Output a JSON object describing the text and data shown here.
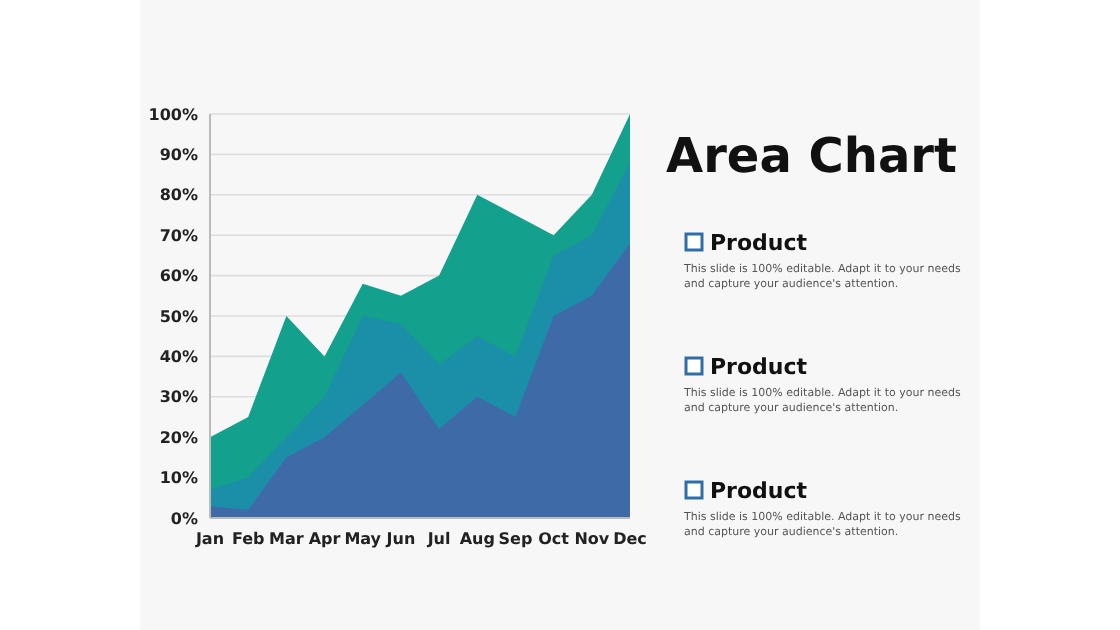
{
  "chart_data": {
    "type": "area",
    "title": "Area Chart",
    "categories": [
      "Jan",
      "Feb",
      "Mar",
      "Apr",
      "May",
      "Jun",
      "Jul",
      "Aug",
      "Sep",
      "Oct",
      "Nov",
      "Dec"
    ],
    "series": [
      {
        "color": "#13a08c",
        "values": [
          20,
          25,
          50,
          40,
          58,
          55,
          60,
          80,
          75,
          70,
          80,
          100
        ]
      },
      {
        "color": "#1b8ea8",
        "values": [
          7,
          10,
          20,
          30,
          50,
          48,
          38,
          45,
          40,
          65,
          70,
          88
        ]
      },
      {
        "color": "#3f6aa8",
        "values": [
          3,
          2,
          15,
          20,
          28,
          36,
          22,
          30,
          25,
          50,
          55,
          68
        ]
      }
    ],
    "ylim": [
      0,
      100
    ],
    "yticks": [
      {
        "value": 0,
        "label": "0%"
      },
      {
        "value": 10,
        "label": "10%"
      },
      {
        "value": 20,
        "label": "20%"
      },
      {
        "value": 30,
        "label": "30%"
      },
      {
        "value": 40,
        "label": "40%"
      },
      {
        "value": 50,
        "label": "50%"
      },
      {
        "value": 60,
        "label": "60%"
      },
      {
        "value": 70,
        "label": "70%"
      },
      {
        "value": 80,
        "label": "80%"
      },
      {
        "value": 90,
        "label": "90%"
      },
      {
        "value": 100,
        "label": "100%"
      }
    ],
    "grid": "y",
    "annotations": [
      "Product",
      "This slide is 100% editable. Adapt it to your needs and capture your audience's attention.",
      "Product",
      "This slide is 100% editable. Adapt it to your needs and capture your audience's attention.",
      "Product",
      "This slide is 100% editable. Adapt it to your needs and capture your audience's attention."
    ]
  }
}
